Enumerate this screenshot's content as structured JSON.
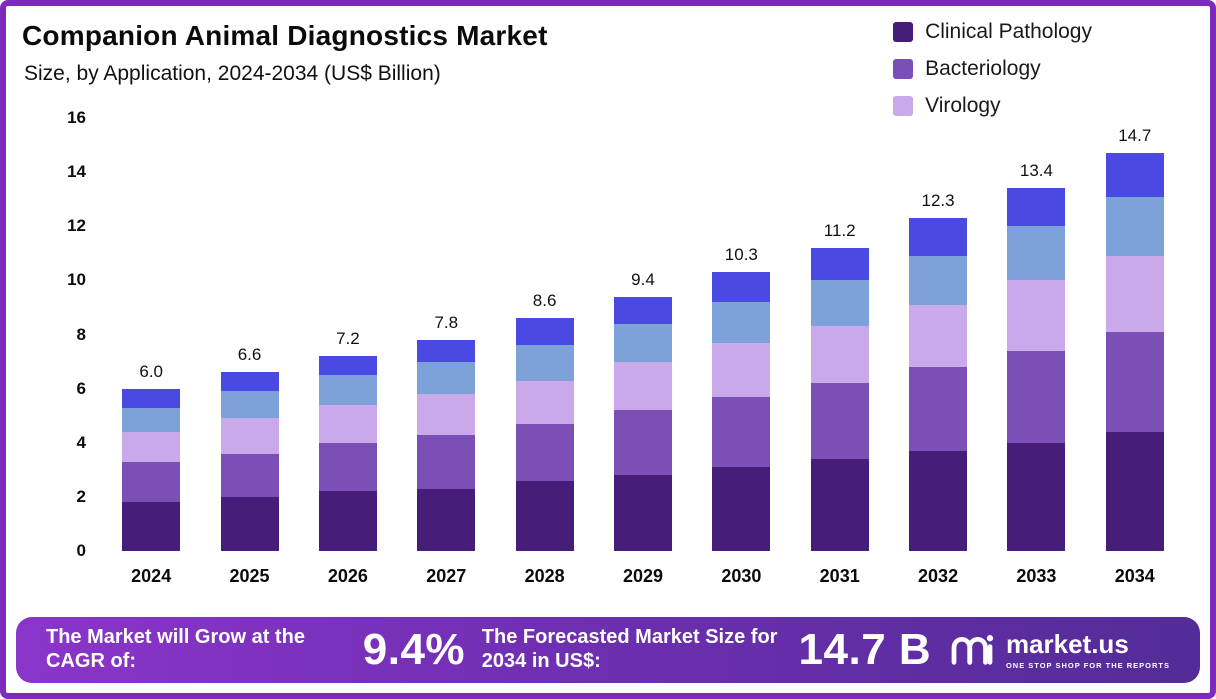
{
  "header": {
    "title": "Companion Animal Diagnostics Market",
    "subtitle": "Size, by Application, 2024-2034 (US$ Billion)"
  },
  "legend": [
    {
      "label": "Clinical Pathology",
      "color": "#471D7A"
    },
    {
      "label": "Bacteriology",
      "color": "#7B4FB6"
    },
    {
      "label": "Virology",
      "color": "#C9A9E9"
    }
  ],
  "chart_data": {
    "type": "bar",
    "stacked": true,
    "title": "Companion Animal Diagnostics Market Size, by Application, 2024-2034 (US$ Billion)",
    "categories": [
      "2024",
      "2025",
      "2026",
      "2027",
      "2028",
      "2029",
      "2030",
      "2031",
      "2032",
      "2033",
      "2034"
    ],
    "totals": [
      "6.0",
      "6.6",
      "7.2",
      "7.8",
      "8.6",
      "9.4",
      "10.3",
      "11.2",
      "12.3",
      "13.4",
      "14.7"
    ],
    "series": [
      {
        "name": "Clinical Pathology",
        "color": "#471D7A",
        "values": [
          1.8,
          2.0,
          2.2,
          2.3,
          2.6,
          2.8,
          3.1,
          3.4,
          3.7,
          4.0,
          4.4
        ]
      },
      {
        "name": "Bacteriology",
        "color": "#7B4FB6",
        "values": [
          1.5,
          1.6,
          1.8,
          2.0,
          2.1,
          2.4,
          2.6,
          2.8,
          3.1,
          3.4,
          3.7
        ]
      },
      {
        "name": "Virology",
        "color": "#C9A9E9",
        "values": [
          1.1,
          1.3,
          1.4,
          1.5,
          1.6,
          1.8,
          2.0,
          2.1,
          2.3,
          2.6,
          2.8
        ]
      },
      {
        "name": "",
        "color": "#7DA1D9",
        "values": [
          0.9,
          1.0,
          1.1,
          1.2,
          1.3,
          1.4,
          1.5,
          1.7,
          1.8,
          2.0,
          2.2
        ]
      },
      {
        "name": "",
        "color": "#4A49E2",
        "values": [
          0.7,
          0.7,
          0.7,
          0.8,
          1.0,
          1.0,
          1.1,
          1.2,
          1.4,
          1.4,
          1.6
        ]
      }
    ],
    "xlabel": "",
    "ylabel": "",
    "ylim": [
      0,
      16
    ],
    "yticks": [
      0,
      2,
      4,
      6,
      8,
      10,
      12,
      14,
      16
    ],
    "grid": false,
    "legend_position": "top-right"
  },
  "banner": {
    "cagr_label": "The Market will Grow at the CAGR of:",
    "cagr_value": "9.4%",
    "forecast_label": "The Forecasted Market Size for 2034 in US$:",
    "forecast_value": "14.7 B",
    "brand": "market.us",
    "brand_tagline": "ONE STOP SHOP FOR THE REPORTS"
  },
  "colors": {
    "frame": "#7E2ABF",
    "banner_gradient_start": "#8B35CA",
    "banner_gradient_end": "#532C97"
  }
}
